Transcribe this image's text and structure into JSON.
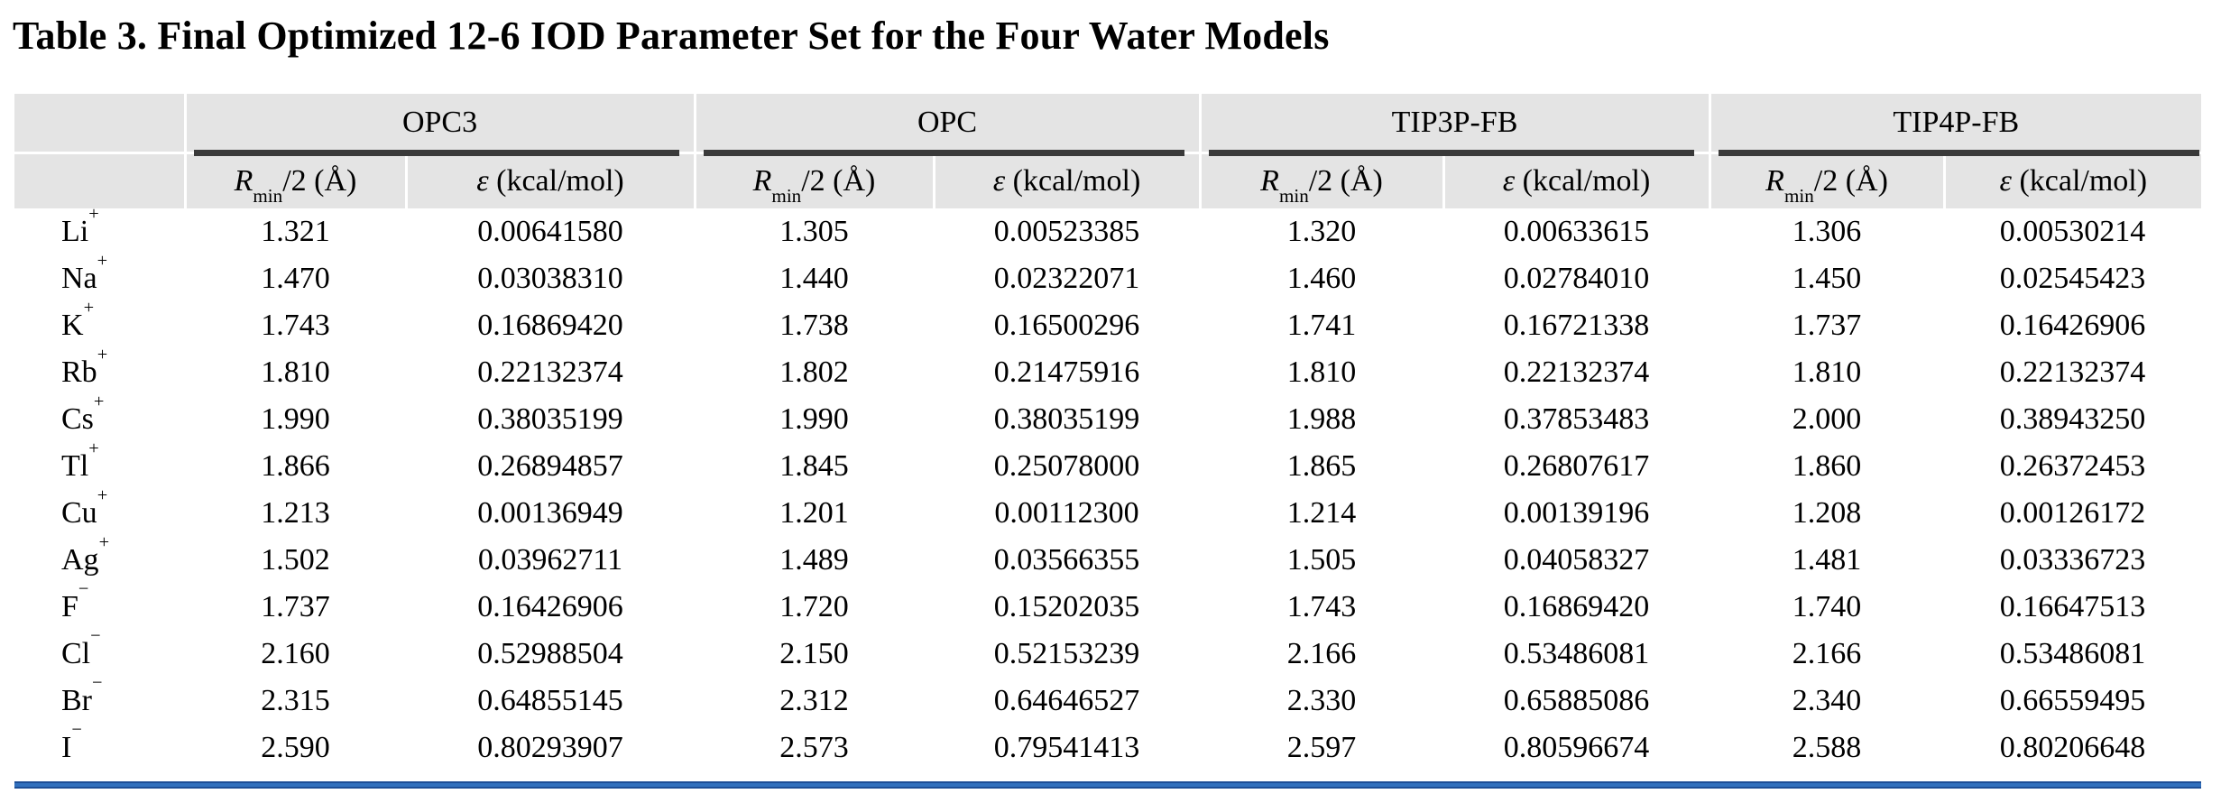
{
  "title": "Table 3. Final Optimized 12-6 IOD Parameter Set for the Four Water Models",
  "table": {
    "groups": [
      "OPC3",
      "OPC",
      "TIP3P-FB",
      "TIP4P-FB"
    ],
    "sub": {
      "r_sym": "R",
      "r_sub": "min",
      "r_rest": "/2 (Å)",
      "e_sym": "ε",
      "e_rest": " (kcal/mol)"
    },
    "rows": [
      {
        "ion": "Li",
        "sign": "+",
        "values": [
          "1.321",
          "0.00641580",
          "1.305",
          "0.00523385",
          "1.320",
          "0.00633615",
          "1.306",
          "0.00530214"
        ]
      },
      {
        "ion": "Na",
        "sign": "+",
        "values": [
          "1.470",
          "0.03038310",
          "1.440",
          "0.02322071",
          "1.460",
          "0.02784010",
          "1.450",
          "0.02545423"
        ]
      },
      {
        "ion": "K",
        "sign": "+",
        "values": [
          "1.743",
          "0.16869420",
          "1.738",
          "0.16500296",
          "1.741",
          "0.16721338",
          "1.737",
          "0.16426906"
        ]
      },
      {
        "ion": "Rb",
        "sign": "+",
        "values": [
          "1.810",
          "0.22132374",
          "1.802",
          "0.21475916",
          "1.810",
          "0.22132374",
          "1.810",
          "0.22132374"
        ]
      },
      {
        "ion": "Cs",
        "sign": "+",
        "values": [
          "1.990",
          "0.38035199",
          "1.990",
          "0.38035199",
          "1.988",
          "0.37853483",
          "2.000",
          "0.38943250"
        ]
      },
      {
        "ion": "Tl",
        "sign": "+",
        "values": [
          "1.866",
          "0.26894857",
          "1.845",
          "0.25078000",
          "1.865",
          "0.26807617",
          "1.860",
          "0.26372453"
        ]
      },
      {
        "ion": "Cu",
        "sign": "+",
        "values": [
          "1.213",
          "0.00136949",
          "1.201",
          "0.00112300",
          "1.214",
          "0.00139196",
          "1.208",
          "0.00126172"
        ]
      },
      {
        "ion": "Ag",
        "sign": "+",
        "values": [
          "1.502",
          "0.03962711",
          "1.489",
          "0.03566355",
          "1.505",
          "0.04058327",
          "1.481",
          "0.03336723"
        ]
      },
      {
        "ion": "F",
        "sign": "−",
        "values": [
          "1.737",
          "0.16426906",
          "1.720",
          "0.15202035",
          "1.743",
          "0.16869420",
          "1.740",
          "0.16647513"
        ]
      },
      {
        "ion": "Cl",
        "sign": "−",
        "values": [
          "2.160",
          "0.52988504",
          "2.150",
          "0.52153239",
          "2.166",
          "0.53486081",
          "2.166",
          "0.53486081"
        ]
      },
      {
        "ion": "Br",
        "sign": "−",
        "values": [
          "2.315",
          "0.64855145",
          "2.312",
          "0.64646527",
          "2.330",
          "0.65885086",
          "2.340",
          "0.66559495"
        ]
      },
      {
        "ion": "I",
        "sign": "−",
        "values": [
          "2.590",
          "0.80293907",
          "2.573",
          "0.79541413",
          "2.597",
          "0.80596674",
          "2.588",
          "0.80206648"
        ]
      }
    ]
  },
  "colors": {
    "header_band": "#e4e4e4",
    "group_rule": "#3a3a3a",
    "bottom_rule_blue": "#3170bd"
  }
}
